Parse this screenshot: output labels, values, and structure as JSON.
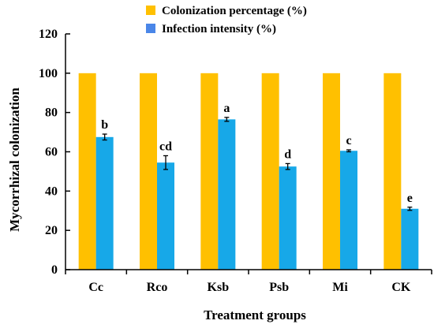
{
  "chart_data": {
    "type": "bar",
    "title": "",
    "xlabel": "Treatment groups",
    "ylabel": "Mycorrhizal colonization",
    "categories": [
      "Cc",
      "Rco",
      "Ksb",
      "Psb",
      "Mi",
      "CK"
    ],
    "ylim": [
      0,
      120
    ],
    "yticks": [
      0,
      20,
      40,
      60,
      80,
      100,
      120
    ],
    "grid": false,
    "legend_position": "top-center",
    "series": [
      {
        "name": "Colonization percentage (%)",
        "color": "#FFC000",
        "values": [
          100,
          100,
          100,
          100,
          100,
          100
        ]
      },
      {
        "name": "Infection intensity (%)",
        "color": "#17A8E8",
        "legend_color": "#4A86E8",
        "values": [
          67.5,
          54.5,
          76.5,
          52.5,
          60.5,
          31
        ],
        "errors": [
          1.5,
          3.5,
          1.0,
          1.5,
          0.5,
          0.8
        ],
        "labels": [
          "b",
          "cd",
          "a",
          "d",
          "c",
          "e"
        ]
      }
    ]
  }
}
